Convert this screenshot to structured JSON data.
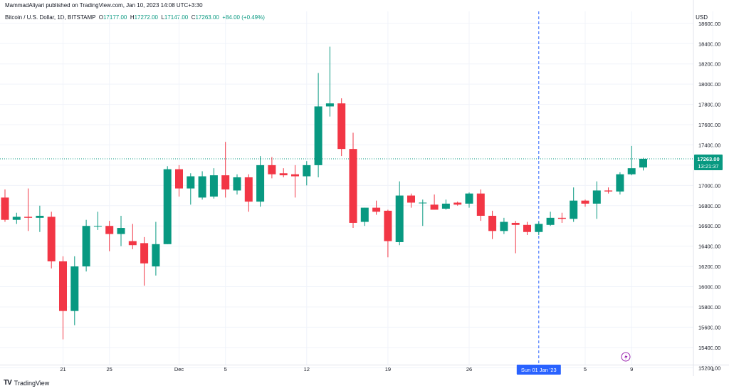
{
  "header": {
    "published": "MammadAliyari published on TradingView.com, Jan 10, 2023 14:08 UTC+3:30",
    "symbol": "Bitcoin / U.S. Dollar, 1D, BITSTAMP",
    "o_label": "O",
    "o_value": "17177.00",
    "h_label": "H",
    "h_value": "17272.00",
    "l_label": "L",
    "l_value": "17147.00",
    "c_label": "C",
    "c_value": "17263.00",
    "change": "+84.00 (+0.49%)",
    "currency": "USD"
  },
  "footer": {
    "logo": "TV",
    "brand": "TradingView"
  },
  "colors": {
    "up": "#089981",
    "down": "#f23645",
    "crosshair": "#2962ff",
    "grid": "#f0f3fa",
    "last_line": "#089981"
  },
  "chart_data": {
    "type": "candlestick",
    "y_range": [
      15200,
      18600
    ],
    "y_ticks": [
      "15200.00",
      "15400.00",
      "15600.00",
      "15800.00",
      "16000.00",
      "16200.00",
      "16400.00",
      "16600.00",
      "16800.00",
      "17000.00",
      "17200.00",
      "17400.00",
      "17600.00",
      "17800.00",
      "18000.00",
      "18200.00",
      "18400.00",
      "18600.00"
    ],
    "x_ticks": [
      {
        "label": "21",
        "index": 5
      },
      {
        "label": "25",
        "index": 9
      },
      {
        "label": "Dec",
        "index": 15
      },
      {
        "label": "5",
        "index": 19
      },
      {
        "label": "12",
        "index": 26
      },
      {
        "label": "19",
        "index": 33
      },
      {
        "label": "26",
        "index": 40
      },
      {
        "label": "5",
        "index": 50
      },
      {
        "label": "9",
        "index": 54
      },
      {
        "label": "1",
        "index": 61
      }
    ],
    "crosshair": {
      "index": 46,
      "label": "Sun 01 Jan '23"
    },
    "last_price": {
      "value": 17263,
      "label": "17263.00",
      "countdown": "13:21:37"
    },
    "candles": [
      {
        "o": 16880,
        "h": 16960,
        "l": 16640,
        "c": 16660
      },
      {
        "o": 16660,
        "h": 16730,
        "l": 16620,
        "c": 16690
      },
      {
        "o": 16690,
        "h": 16970,
        "l": 16550,
        "c": 16680
      },
      {
        "o": 16680,
        "h": 16800,
        "l": 16540,
        "c": 16700
      },
      {
        "o": 16690,
        "h": 16740,
        "l": 16180,
        "c": 16250
      },
      {
        "o": 16250,
        "h": 16300,
        "l": 15480,
        "c": 15760
      },
      {
        "o": 15760,
        "h": 16300,
        "l": 15620,
        "c": 16200
      },
      {
        "o": 16200,
        "h": 16660,
        "l": 16150,
        "c": 16600
      },
      {
        "o": 16600,
        "h": 16740,
        "l": 16560,
        "c": 16600
      },
      {
        "o": 16600,
        "h": 16650,
        "l": 16350,
        "c": 16520
      },
      {
        "o": 16520,
        "h": 16700,
        "l": 16400,
        "c": 16580
      },
      {
        "o": 16450,
        "h": 16620,
        "l": 16370,
        "c": 16410
      },
      {
        "o": 16430,
        "h": 16490,
        "l": 16010,
        "c": 16230
      },
      {
        "o": 16200,
        "h": 16640,
        "l": 16110,
        "c": 16420
      },
      {
        "o": 16420,
        "h": 17190,
        "l": 16420,
        "c": 17160
      },
      {
        "o": 17160,
        "h": 17200,
        "l": 16890,
        "c": 16970
      },
      {
        "o": 16970,
        "h": 17120,
        "l": 16810,
        "c": 17090
      },
      {
        "o": 16880,
        "h": 17140,
        "l": 16860,
        "c": 17090
      },
      {
        "o": 16890,
        "h": 17170,
        "l": 16870,
        "c": 17100
      },
      {
        "o": 17100,
        "h": 17430,
        "l": 16880,
        "c": 16960
      },
      {
        "o": 16950,
        "h": 17110,
        "l": 16910,
        "c": 17080
      },
      {
        "o": 17080,
        "h": 17110,
        "l": 16740,
        "c": 16840
      },
      {
        "o": 16840,
        "h": 17290,
        "l": 16790,
        "c": 17200
      },
      {
        "o": 17200,
        "h": 17280,
        "l": 17070,
        "c": 17110
      },
      {
        "o": 17120,
        "h": 17170,
        "l": 17080,
        "c": 17100
      },
      {
        "o": 17110,
        "h": 17200,
        "l": 16880,
        "c": 17090
      },
      {
        "o": 17090,
        "h": 17240,
        "l": 17000,
        "c": 17200
      },
      {
        "o": 17200,
        "h": 18110,
        "l": 17080,
        "c": 17780
      },
      {
        "o": 17780,
        "h": 18370,
        "l": 17680,
        "c": 17810
      },
      {
        "o": 17810,
        "h": 17860,
        "l": 17290,
        "c": 17360
      },
      {
        "o": 17360,
        "h": 17520,
        "l": 16580,
        "c": 16630
      },
      {
        "o": 16640,
        "h": 16780,
        "l": 16600,
        "c": 16780
      },
      {
        "o": 16780,
        "h": 16850,
        "l": 16710,
        "c": 16740
      },
      {
        "o": 16750,
        "h": 16760,
        "l": 16290,
        "c": 16450
      },
      {
        "o": 16440,
        "h": 17040,
        "l": 16410,
        "c": 16900
      },
      {
        "o": 16900,
        "h": 16920,
        "l": 16780,
        "c": 16830
      },
      {
        "o": 16830,
        "h": 16860,
        "l": 16600,
        "c": 16830
      },
      {
        "o": 16810,
        "h": 16910,
        "l": 16760,
        "c": 16760
      },
      {
        "o": 16770,
        "h": 16860,
        "l": 16760,
        "c": 16820
      },
      {
        "o": 16830,
        "h": 16840,
        "l": 16800,
        "c": 16810
      },
      {
        "o": 16820,
        "h": 16930,
        "l": 16780,
        "c": 16920
      },
      {
        "o": 16920,
        "h": 16960,
        "l": 16650,
        "c": 16700
      },
      {
        "o": 16700,
        "h": 16750,
        "l": 16470,
        "c": 16550
      },
      {
        "o": 16550,
        "h": 16680,
        "l": 16520,
        "c": 16640
      },
      {
        "o": 16630,
        "h": 16650,
        "l": 16330,
        "c": 16610
      },
      {
        "o": 16610,
        "h": 16640,
        "l": 16510,
        "c": 16540
      },
      {
        "o": 16540,
        "h": 16640,
        "l": 16510,
        "c": 16620
      },
      {
        "o": 16610,
        "h": 16740,
        "l": 16600,
        "c": 16680
      },
      {
        "o": 16680,
        "h": 16730,
        "l": 16630,
        "c": 16670
      },
      {
        "o": 16670,
        "h": 16980,
        "l": 16640,
        "c": 16850
      },
      {
        "o": 16850,
        "h": 16860,
        "l": 16790,
        "c": 16820
      },
      {
        "o": 16820,
        "h": 17040,
        "l": 16670,
        "c": 16950
      },
      {
        "o": 16950,
        "h": 16980,
        "l": 16920,
        "c": 16940
      },
      {
        "o": 16940,
        "h": 17130,
        "l": 16910,
        "c": 17110
      },
      {
        "o": 17110,
        "h": 17390,
        "l": 17100,
        "c": 17170
      },
      {
        "o": 17177,
        "h": 17272,
        "l": 17147,
        "c": 17263
      }
    ]
  }
}
